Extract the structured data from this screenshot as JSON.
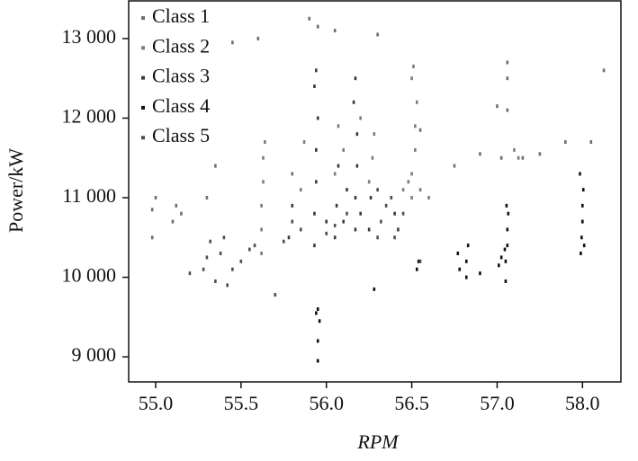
{
  "chart_data": {
    "type": "scatter",
    "x_label": "RPM",
    "y_label": "Power/kW",
    "xlim": [
      54.842,
      58.45
    ],
    "ylim": [
      8685,
      13473
    ],
    "xticks": [
      {
        "value": 55,
        "label": "55.0"
      },
      {
        "value": 55.5,
        "label": "55.5"
      },
      {
        "value": 56,
        "label": "56.0"
      },
      {
        "value": 56.5,
        "label": "56.5"
      },
      {
        "value": 57,
        "label": "57.0"
      },
      {
        "value": 58,
        "label": "58.0"
      }
    ],
    "yticks": [
      {
        "value": 9000,
        "label": "9 000"
      },
      {
        "value": 10000,
        "label": "10 000"
      },
      {
        "value": 11000,
        "label": "11 000"
      },
      {
        "value": 12000,
        "label": "12 000"
      },
      {
        "value": 13000,
        "label": "13 000"
      }
    ],
    "legend": "top-left",
    "series": [
      {
        "name": "Class 1",
        "color": "#6e6e6e",
        "x": [
          54.98,
          54.98,
          55.0,
          55.1,
          55.12,
          55.15,
          55.9,
          55.95,
          56.05,
          56.3,
          55.6,
          55.45,
          56.55,
          56.9,
          57.05,
          57.12,
          57.12,
          57.12,
          57.3,
          57.8,
          58.25,
          58.1,
          57.5,
          56.75,
          57.0,
          55.8,
          55.3,
          55.35
        ],
        "values": [
          10500,
          10850,
          11000,
          10700,
          10900,
          10800,
          13250,
          13150,
          13100,
          13050,
          13000,
          12950,
          11850,
          11550,
          11500,
          12100,
          12500,
          12700,
          11500,
          11700,
          12600,
          11700,
          11550,
          11400,
          12150,
          11300,
          11000,
          11400
        ]
      },
      {
        "name": "Class 2",
        "color": "#7c7c7c",
        "x": [
          55.62,
          55.62,
          55.63,
          55.63,
          55.64,
          55.62,
          56.5,
          56.5,
          56.52,
          56.52,
          56.53,
          56.5,
          56.51,
          56.45,
          56.48,
          55.85,
          55.87,
          56.05,
          56.07,
          56.1,
          56.25,
          56.27,
          56.28,
          56.2,
          56.55,
          56.6,
          57.2,
          57.25
        ],
        "values": [
          10600,
          10900,
          11200,
          11500,
          11700,
          10300,
          11000,
          11300,
          11600,
          11900,
          12200,
          12500,
          12650,
          11100,
          11200,
          11100,
          11700,
          11300,
          11900,
          11600,
          11200,
          11500,
          11800,
          12000,
          11100,
          11000,
          11600,
          11500
        ]
      },
      {
        "name": "Class 3",
        "color": "#3a3a3a",
        "x": [
          55.93,
          55.93,
          55.94,
          55.94,
          55.95,
          55.93,
          55.94,
          56.17,
          56.17,
          56.18,
          56.18,
          56.16,
          56.17,
          56.05,
          56.06,
          56.07,
          56.25,
          56.26,
          56.1,
          56.12,
          56.4,
          56.42,
          55.78,
          55.8,
          56.0,
          56.2
        ],
        "values": [
          10400,
          10800,
          11200,
          11600,
          12000,
          12400,
          12600,
          10600,
          11000,
          11400,
          11800,
          12200,
          12500,
          10500,
          10900,
          11400,
          10600,
          11000,
          10700,
          11100,
          10800,
          10600,
          10500,
          10900,
          10700,
          10800
        ]
      },
      {
        "name": "Class 4",
        "color": "#111111",
        "x": [
          55.95,
          55.95,
          55.96,
          55.95,
          55.94,
          56.53,
          56.54,
          56.82,
          56.82,
          56.83,
          56.78,
          56.77,
          56.9,
          57.02,
          57.05,
          57.1,
          57.1,
          57.12,
          57.12,
          57.13,
          57.11,
          57.09,
          57.98,
          57.99,
          58.0,
          58.0,
          58.01,
          58.02,
          57.97,
          56.28
        ],
        "values": [
          8950,
          9200,
          9450,
          9600,
          9550,
          10100,
          10200,
          10000,
          10200,
          10400,
          10100,
          10300,
          10050,
          10150,
          10250,
          9950,
          10200,
          10400,
          10600,
          10800,
          10900,
          10350,
          10300,
          10500,
          10700,
          10900,
          11100,
          10400,
          11300,
          9850
        ]
      },
      {
        "name": "Class 5",
        "color": "#4f4f4f",
        "x": [
          55.28,
          55.3,
          55.32,
          55.35,
          55.38,
          55.4,
          55.42,
          55.45,
          55.2,
          55.5,
          55.55,
          55.58,
          56.3,
          56.32,
          56.35,
          56.38,
          56.42,
          56.45,
          56.3,
          56.4,
          55.75,
          55.8,
          55.85,
          56.0,
          56.05,
          56.12,
          55.7,
          56.55
        ],
        "values": [
          10100,
          10250,
          10450,
          9950,
          10300,
          10500,
          9900,
          10100,
          10050,
          10200,
          10350,
          10400,
          10500,
          10700,
          10900,
          11000,
          10600,
          10800,
          11100,
          10500,
          10450,
          10700,
          10600,
          10550,
          10650,
          10800,
          9780,
          10200
        ]
      }
    ]
  }
}
